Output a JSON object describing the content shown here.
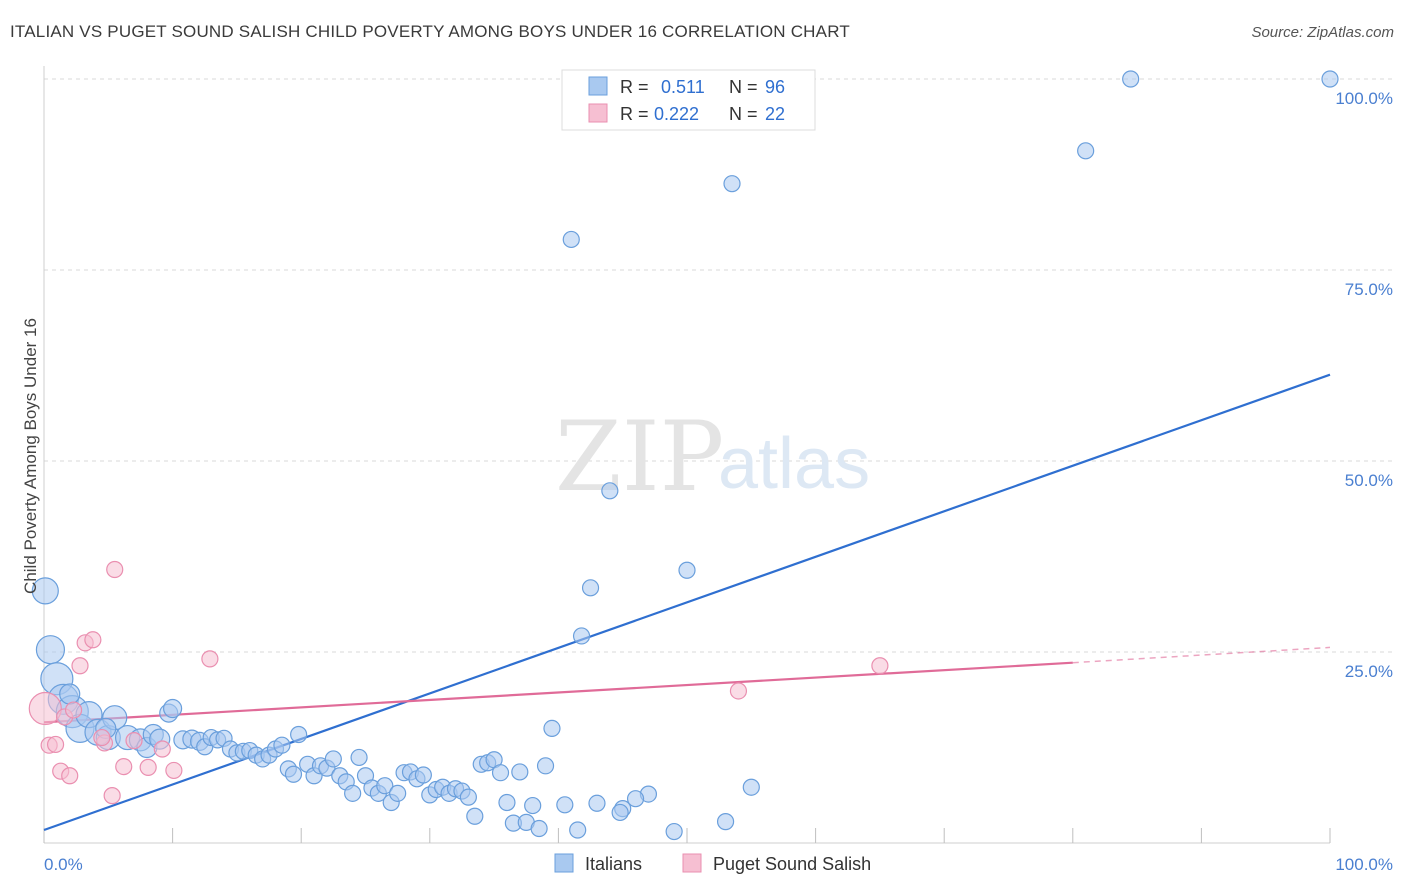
{
  "title": "ITALIAN VS PUGET SOUND SALISH CHILD POVERTY AMONG BOYS UNDER 16 CORRELATION CHART",
  "source": "Source: ZipAtlas.com",
  "watermark": {
    "part1": "ZIP",
    "part2": "atlas"
  },
  "colors": {
    "italians_fill": "#a9c9f0",
    "italians_stroke": "#6a9fdc",
    "italians_line": "#2f6fd0",
    "salish_fill": "#f6bfd2",
    "salish_stroke": "#ea8fb0",
    "salish_line": "#e06b98",
    "grid": "#d8d8d8",
    "tick_text": "#4a7fd0"
  },
  "legend": {
    "rows": [
      {
        "r_label": "R =",
        "r_value": "0.511",
        "n_label": "N =",
        "n_value": "96"
      },
      {
        "r_label": "R =",
        "r_value": "0.222",
        "n_label": "N =",
        "n_value": "22"
      }
    ]
  },
  "bottom_legend": {
    "italians": "Italians",
    "salish": "Puget Sound Salish"
  },
  "chart_data": {
    "type": "scatter",
    "ylabel": "Child Poverty Among Boys Under 16",
    "xlim": [
      0,
      100
    ],
    "ylim": [
      0,
      100
    ],
    "x_tick_labels": [
      "0.0%",
      "100.0%"
    ],
    "y_tick_labels": [
      "25.0%",
      "50.0%",
      "75.0%",
      "100.0%"
    ],
    "y_ticks": [
      25,
      50,
      75,
      100
    ],
    "grid": true,
    "legend_position": "top-center",
    "series": [
      {
        "name": "Italians",
        "trend": {
          "x": [
            0,
            100
          ],
          "y": [
            1.7,
            61.3
          ]
        },
        "points": [
          [
            0.1,
            33,
            13
          ],
          [
            0.5,
            25.3,
            14
          ],
          [
            1.0,
            21.5,
            16
          ],
          [
            1.5,
            18.8,
            15
          ],
          [
            2.2,
            17.2,
            16
          ],
          [
            2.8,
            15.0,
            14
          ],
          [
            3.5,
            16.8,
            13
          ],
          [
            4.2,
            14.5,
            13
          ],
          [
            5.0,
            13.8,
            12
          ],
          [
            5.5,
            16.4,
            12
          ],
          [
            6.5,
            13.8,
            12
          ],
          [
            7.5,
            13.5,
            11
          ],
          [
            8.0,
            12.5,
            10
          ],
          [
            8.5,
            14.2,
            10
          ],
          [
            9.0,
            13.6,
            10
          ],
          [
            9.7,
            17.0,
            9
          ],
          [
            10.0,
            17.6,
            9
          ],
          [
            10.8,
            13.5,
            9
          ],
          [
            11.5,
            13.6,
            9
          ],
          [
            12.1,
            13.3,
            9
          ],
          [
            12.5,
            12.6,
            8
          ],
          [
            13.0,
            13.8,
            8
          ],
          [
            13.5,
            13.5,
            8
          ],
          [
            14.0,
            13.7,
            8
          ],
          [
            14.5,
            12.3,
            8
          ],
          [
            15.0,
            11.8,
            8
          ],
          [
            15.5,
            12.0,
            8
          ],
          [
            16.0,
            12.1,
            8
          ],
          [
            16.5,
            11.5,
            8
          ],
          [
            17.0,
            11.0,
            8
          ],
          [
            17.5,
            11.5,
            8
          ],
          [
            18.0,
            12.3,
            8
          ],
          [
            18.5,
            12.8,
            8
          ],
          [
            19.0,
            9.7,
            8
          ],
          [
            19.4,
            9.0,
            8
          ],
          [
            19.8,
            14.2,
            8
          ],
          [
            20.5,
            10.3,
            8
          ],
          [
            21.0,
            8.8,
            8
          ],
          [
            21.5,
            10.1,
            8
          ],
          [
            22.0,
            9.8,
            8
          ],
          [
            22.5,
            11.0,
            8
          ],
          [
            23.0,
            8.8,
            8
          ],
          [
            23.5,
            8.0,
            8
          ],
          [
            24.0,
            6.5,
            8
          ],
          [
            24.5,
            11.2,
            8
          ],
          [
            25.0,
            8.8,
            8
          ],
          [
            25.5,
            7.2,
            8
          ],
          [
            26.0,
            6.5,
            8
          ],
          [
            26.5,
            7.5,
            8
          ],
          [
            27.0,
            5.3,
            8
          ],
          [
            27.5,
            6.5,
            8
          ],
          [
            28.0,
            9.2,
            8
          ],
          [
            28.5,
            9.3,
            8
          ],
          [
            29.0,
            8.4,
            8
          ],
          [
            29.5,
            8.9,
            8
          ],
          [
            30.0,
            6.3,
            8
          ],
          [
            30.5,
            7.0,
            8
          ],
          [
            31.0,
            7.3,
            8
          ],
          [
            31.5,
            6.5,
            8
          ],
          [
            32.0,
            7.1,
            8
          ],
          [
            32.5,
            6.8,
            8
          ],
          [
            33.0,
            6.0,
            8
          ],
          [
            33.5,
            3.5,
            8
          ],
          [
            34.0,
            10.3,
            8
          ],
          [
            34.5,
            10.5,
            8
          ],
          [
            35.0,
            10.9,
            8
          ],
          [
            35.5,
            9.2,
            8
          ],
          [
            36.0,
            5.3,
            8
          ],
          [
            36.5,
            2.6,
            8
          ],
          [
            37.0,
            9.3,
            8
          ],
          [
            37.5,
            2.7,
            8
          ],
          [
            38.0,
            4.9,
            8
          ],
          [
            38.5,
            1.9,
            8
          ],
          [
            39.0,
            10.1,
            8
          ],
          [
            39.5,
            15.0,
            8
          ],
          [
            40.5,
            5.0,
            8
          ],
          [
            41.5,
            1.7,
            8
          ],
          [
            42.5,
            33.4,
            8
          ],
          [
            41.0,
            79.0,
            8
          ],
          [
            44.0,
            46.1,
            8
          ],
          [
            41.8,
            27.1,
            8
          ],
          [
            43.0,
            5.2,
            8
          ],
          [
            45.0,
            4.5,
            8
          ],
          [
            47.0,
            6.4,
            8
          ],
          [
            49.0,
            1.5,
            8
          ],
          [
            50.0,
            35.7,
            8
          ],
          [
            53.0,
            2.8,
            8
          ],
          [
            55.0,
            7.3,
            8
          ],
          [
            53.5,
            86.3,
            8
          ],
          [
            81.0,
            90.6,
            8
          ],
          [
            84.5,
            100.0,
            8
          ],
          [
            100.0,
            100.0,
            8
          ],
          [
            44.8,
            4.0,
            8
          ],
          [
            46.0,
            5.8,
            8
          ],
          [
            2.0,
            19.5,
            10
          ],
          [
            4.8,
            15.0,
            10
          ]
        ]
      },
      {
        "name": "Puget Sound Salish",
        "trend": {
          "x": [
            0,
            80
          ],
          "y": [
            15.8,
            23.6
          ]
        },
        "trend_dashed": {
          "x": [
            80,
            100
          ],
          "y": [
            23.6,
            25.6
          ]
        },
        "points": [
          [
            0.1,
            17.6,
            16
          ],
          [
            0.4,
            12.8,
            8
          ],
          [
            0.9,
            12.9,
            8
          ],
          [
            1.3,
            9.4,
            8
          ],
          [
            1.6,
            16.5,
            8
          ],
          [
            2.0,
            8.8,
            8
          ],
          [
            2.3,
            17.4,
            8
          ],
          [
            2.8,
            23.2,
            8
          ],
          [
            3.2,
            26.2,
            8
          ],
          [
            3.8,
            26.6,
            8
          ],
          [
            4.7,
            13.1,
            8
          ],
          [
            5.3,
            6.2,
            8
          ],
          [
            5.5,
            35.8,
            8
          ],
          [
            6.2,
            10.0,
            8
          ],
          [
            7.0,
            13.4,
            8
          ],
          [
            8.1,
            9.9,
            8
          ],
          [
            9.2,
            12.3,
            8
          ],
          [
            10.1,
            9.5,
            8
          ],
          [
            12.9,
            24.1,
            8
          ],
          [
            54.0,
            19.9,
            8
          ],
          [
            65.0,
            23.2,
            8
          ],
          [
            4.5,
            13.8,
            8
          ]
        ]
      }
    ]
  }
}
